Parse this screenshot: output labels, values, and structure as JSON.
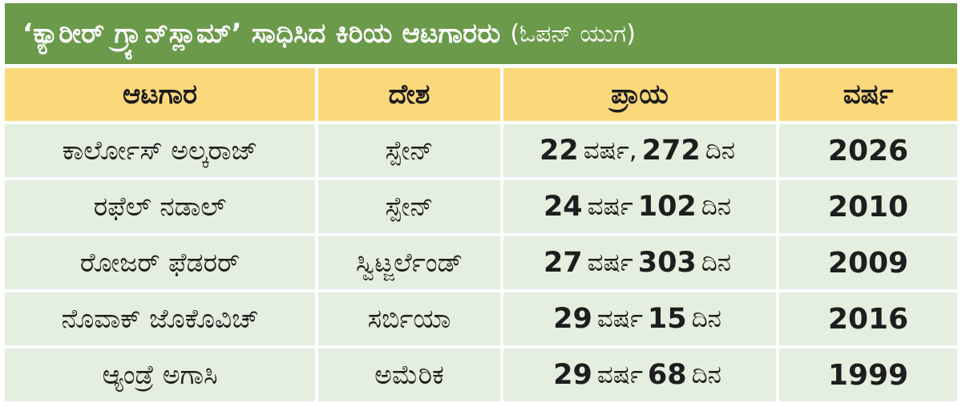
{
  "title": {
    "main": "‘ಕ್ಯಾರೀರ್ ಗ್ರ್ಯಾನ್‌ಸ್ಲಾಮ್’ ಸಾಧಿಸಿದ ಕಿರಿಯ ಆಟಗಾರರು",
    "sub": "(ಓಪನ್ ಯುಗ)"
  },
  "colors": {
    "title_bg": "#6a9a4a",
    "header_bg": "#fbd87a",
    "row_bg": "#e4efdf"
  },
  "table": {
    "headers": [
      "ಆಟಗಾರ",
      "ದೇಶ",
      "ಪ್ರಾಯ",
      "ವರ್ಷ"
    ],
    "rows": [
      {
        "player": "ಕಾರ್ಲೋಸ್ ಅಲ್ಕರಾಜ್",
        "country": "ಸ್ಪೇನ್",
        "age_years": "22",
        "years_unit": "ವರ್ಷ,",
        "age_days": "272",
        "days_unit": "ದಿನ",
        "year": "2026"
      },
      {
        "player": "ರಫೆಲ್ ನಡಾಲ್",
        "country": "ಸ್ಪೇನ್",
        "age_years": "24",
        "years_unit": "ವರ್ಷ",
        "age_days": "102",
        "days_unit": "ದಿನ",
        "year": "2010"
      },
      {
        "player": "ರೋಜರ್ ಫೆಡರರ್",
        "country": "ಸ್ವಿಟ್ಜರ್ಲೆಂಡ್",
        "age_years": "27",
        "years_unit": "ವರ್ಷ",
        "age_days": "303",
        "days_unit": "ದಿನ",
        "year": "2009"
      },
      {
        "player": "ನೊವಾಕ್ ಜೊಕೊವಿಚ್",
        "country": "ಸರ್ಬಿಯಾ",
        "age_years": "29",
        "years_unit": "ವರ್ಷ",
        "age_days": "15",
        "days_unit": "ದಿನ",
        "year": "2016"
      },
      {
        "player": "ಆ್ಯಂಡ್ರೆ ಅಗಾಸಿ",
        "country": "ಅಮೆರಿಕ",
        "age_years": "29",
        "years_unit": "ವರ್ಷ",
        "age_days": "68",
        "days_unit": "ದಿನ",
        "year": "1999"
      }
    ]
  }
}
